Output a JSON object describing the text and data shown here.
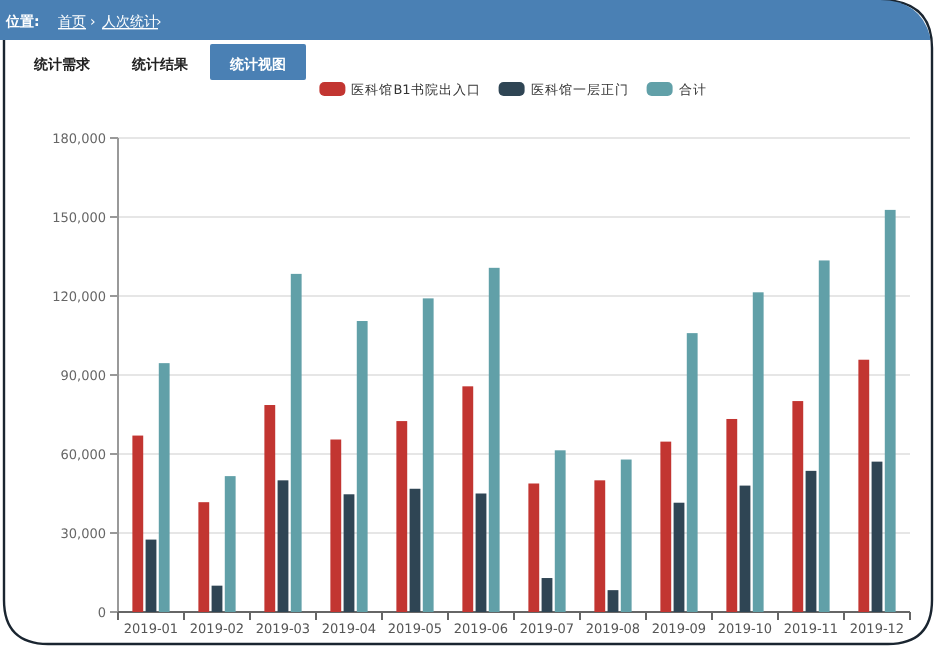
{
  "chart_data": {
    "type": "bar",
    "annotations": [
      "位置:",
      "首页",
      "›",
      "人次统计",
      "›",
      "统计需求",
      "统计结果",
      "统计视图"
    ],
    "categories": [
      "2019-01",
      "2019-02",
      "2019-03",
      "2019-04",
      "2019-05",
      "2019-06",
      "2019-07",
      "2019-08",
      "2019-09",
      "2019-10",
      "2019-11",
      "2019-12"
    ],
    "series": [
      {
        "name": "医科馆B1书院出入口",
        "color": "#c23531",
        "values": [
          67000,
          41700,
          78600,
          65500,
          72500,
          85700,
          48800,
          50000,
          64700,
          73300,
          80100,
          95800
        ]
      },
      {
        "name": "医科馆一层正门",
        "color": "#2f4554",
        "values": [
          27500,
          10000,
          50000,
          44700,
          46800,
          45000,
          12900,
          8300,
          41500,
          48000,
          53600,
          57100
        ]
      },
      {
        "name": "合计",
        "color": "#61a0a8",
        "values": [
          94500,
          51600,
          128400,
          110500,
          119100,
          130700,
          61400,
          57900,
          105900,
          121400,
          133500,
          152700
        ]
      }
    ],
    "ylim": [
      0,
      180000
    ],
    "yticks": [
      {
        "value": 0,
        "label": "0"
      },
      {
        "value": 30000,
        "label": "30,000"
      },
      {
        "value": 60000,
        "label": "60,000"
      },
      {
        "value": 90000,
        "label": "90,000"
      },
      {
        "value": 120000,
        "label": "120,000"
      },
      {
        "value": 150000,
        "label": "150,000"
      },
      {
        "value": 180000,
        "label": "180,000"
      }
    ],
    "grid": "y",
    "legend": "top"
  }
}
